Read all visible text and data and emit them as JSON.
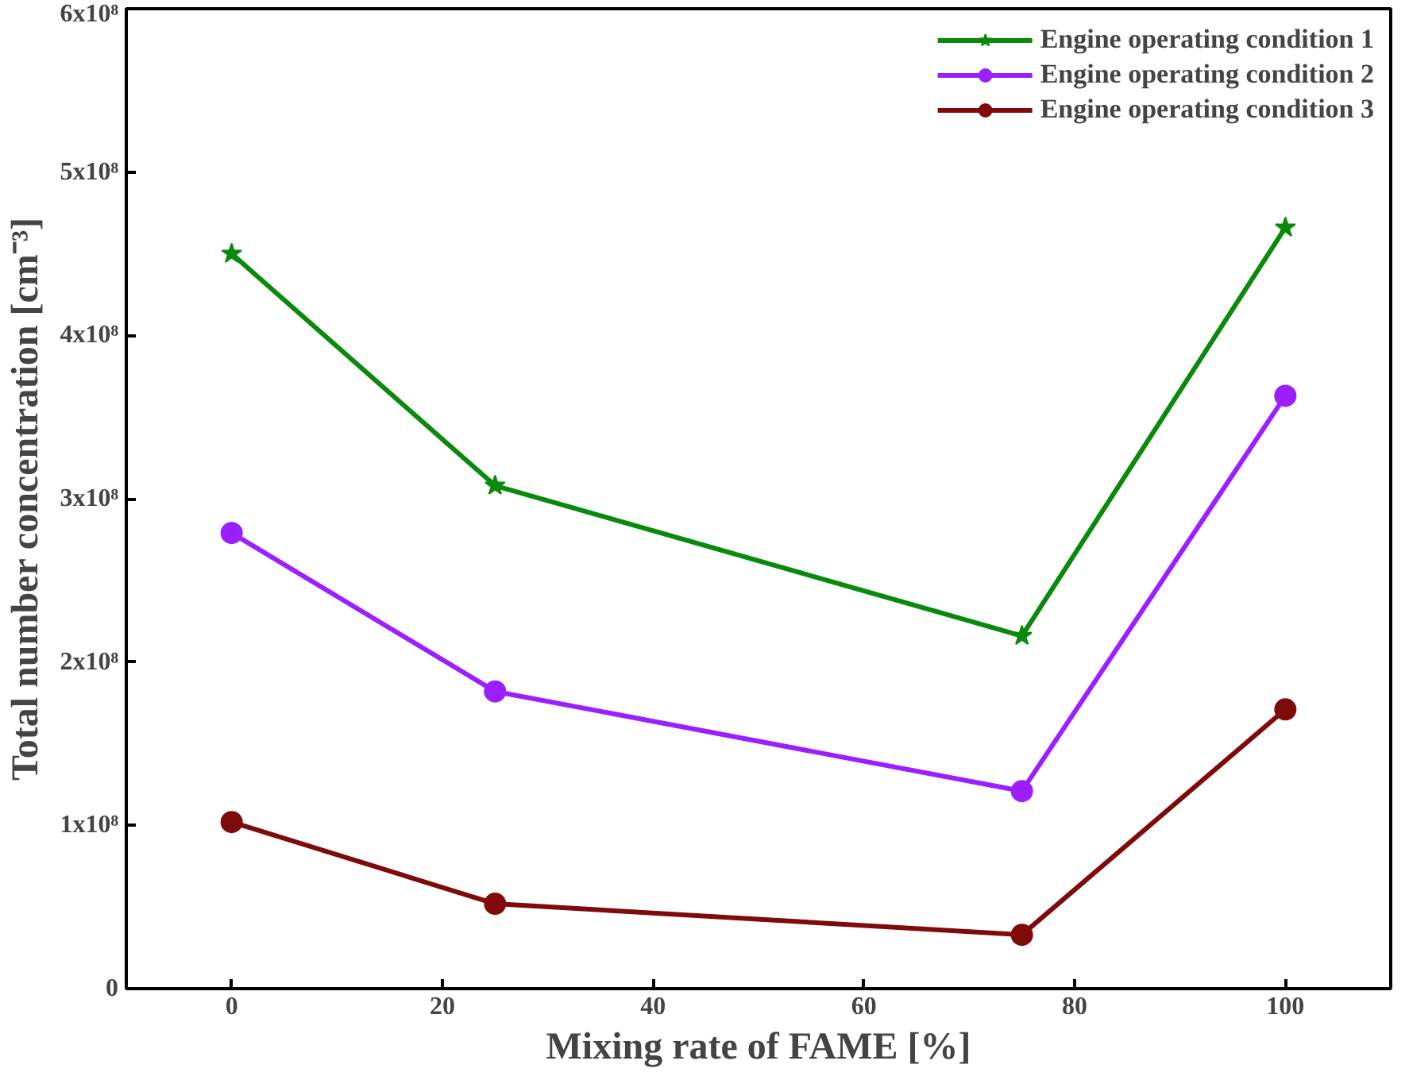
{
  "chart_data": {
    "type": "line",
    "xlabel": "Mixing rate of FAME [%]",
    "ylabel": "Total number concentration [cm⁻³]",
    "x": [
      0,
      25,
      75,
      100
    ],
    "series": [
      {
        "name": "Engine operating condition 1",
        "color": "#0a8a0a",
        "marker": "star",
        "values": [
          450000000.0,
          308000000.0,
          216000000.0,
          466000000.0
        ]
      },
      {
        "name": "Engine operating condition 2",
        "color": "#9b1fff",
        "marker": "circle",
        "values": [
          279000000.0,
          182000000.0,
          121000000.0,
          363000000.0
        ]
      },
      {
        "name": "Engine operating condition 3",
        "color": "#7e0a0a",
        "marker": "circle",
        "values": [
          102000000.0,
          52000000.0,
          33000000.0,
          171000000.0
        ]
      }
    ],
    "xlim": [
      -10,
      110
    ],
    "xticks": [
      0,
      20,
      40,
      60,
      80,
      100
    ],
    "ylim": [
      0,
      600000000.0
    ],
    "yticks": [
      {
        "value": 0,
        "label": "0"
      },
      {
        "value": 100000000.0,
        "label": "1x10⁸"
      },
      {
        "value": 200000000.0,
        "label": "2x10⁸"
      },
      {
        "value": 300000000.0,
        "label": "3x10⁸"
      },
      {
        "value": 400000000.0,
        "label": "4x10⁸"
      },
      {
        "value": 500000000.0,
        "label": "5x10⁸"
      },
      {
        "value": 600000000.0,
        "label": "6x10⁸"
      }
    ],
    "grid": false,
    "legend": "top right",
    "line_style": "solid"
  }
}
